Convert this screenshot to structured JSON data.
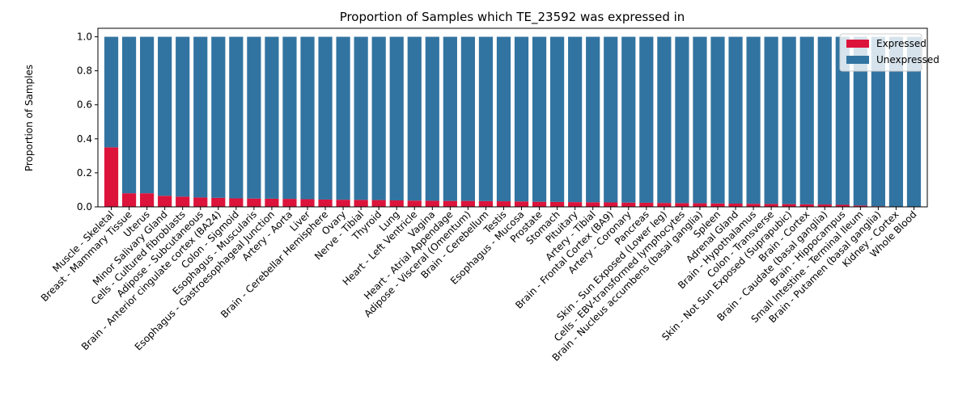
{
  "chart_data": {
    "type": "bar",
    "stacked": true,
    "title": "Proportion of Samples which TE_23592 was expressed in",
    "xlabel": "",
    "ylabel": "Proportion of Samples",
    "ylim": [
      0,
      1.05
    ],
    "yticks": [
      "0.0",
      "0.2",
      "0.4",
      "0.6",
      "0.8",
      "1.0"
    ],
    "legend_position": "top-right",
    "categories": [
      "Muscle - Skeletal",
      "Breast - Mammary Tissue",
      "Uterus",
      "Minor Salivary Gland",
      "Cells - Cultured fibroblasts",
      "Adipose - Subcutaneous",
      "Brain - Anterior cingulate cortex (BA24)",
      "Colon - Sigmoid",
      "Esophagus - Muscularis",
      "Esophagus - Gastroesophageal Junction",
      "Artery - Aorta",
      "Liver",
      "Brain - Cerebellar Hemisphere",
      "Ovary",
      "Nerve - Tibial",
      "Thyroid",
      "Lung",
      "Heart - Left Ventricle",
      "Vagina",
      "Heart - Atrial Appendage",
      "Adipose - Visceral (Omentum)",
      "Brain - Cerebellum",
      "Testis",
      "Esophagus - Mucosa",
      "Prostate",
      "Stomach",
      "Pituitary",
      "Artery - Tibial",
      "Brain - Frontal Cortex (BA9)",
      "Artery - Coronary",
      "Pancreas",
      "Skin - Sun Exposed (Lower leg)",
      "Cells - EBV-transformed lymphocytes",
      "Brain - Nucleus accumbens (basal ganglia)",
      "Spleen",
      "Adrenal Gland",
      "Brain - Hypothalamus",
      "Colon - Transverse",
      "Skin - Not Sun Exposed (Suprapubic)",
      "Brain - Cortex",
      "Brain - Caudate (basal ganglia)",
      "Brain - Hippocampus",
      "Small Intestine - Terminal Ileum",
      "Brain - Putamen (basal ganglia)",
      "Kidney - Cortex",
      "Whole Blood"
    ],
    "series": [
      {
        "name": "Expressed",
        "color": "#dc143c",
        "values": [
          0.35,
          0.08,
          0.08,
          0.065,
          0.06,
          0.055,
          0.053,
          0.05,
          0.049,
          0.048,
          0.047,
          0.045,
          0.043,
          0.042,
          0.041,
          0.04,
          0.038,
          0.037,
          0.036,
          0.035,
          0.035,
          0.034,
          0.033,
          0.032,
          0.03,
          0.029,
          0.028,
          0.027,
          0.026,
          0.025,
          0.024,
          0.023,
          0.022,
          0.021,
          0.02,
          0.019,
          0.018,
          0.017,
          0.016,
          0.015,
          0.014,
          0.012,
          0.008,
          0.004,
          0.0,
          0.0
        ]
      },
      {
        "name": "Unexpressed",
        "color": "#3274a1",
        "values": [
          0.65,
          0.92,
          0.92,
          0.935,
          0.94,
          0.945,
          0.947,
          0.95,
          0.951,
          0.952,
          0.953,
          0.955,
          0.957,
          0.958,
          0.959,
          0.96,
          0.962,
          0.963,
          0.964,
          0.965,
          0.965,
          0.966,
          0.967,
          0.968,
          0.97,
          0.971,
          0.972,
          0.973,
          0.974,
          0.975,
          0.976,
          0.977,
          0.978,
          0.979,
          0.98,
          0.981,
          0.982,
          0.983,
          0.984,
          0.985,
          0.986,
          0.988,
          0.992,
          0.996,
          1.0,
          1.0
        ]
      }
    ]
  }
}
